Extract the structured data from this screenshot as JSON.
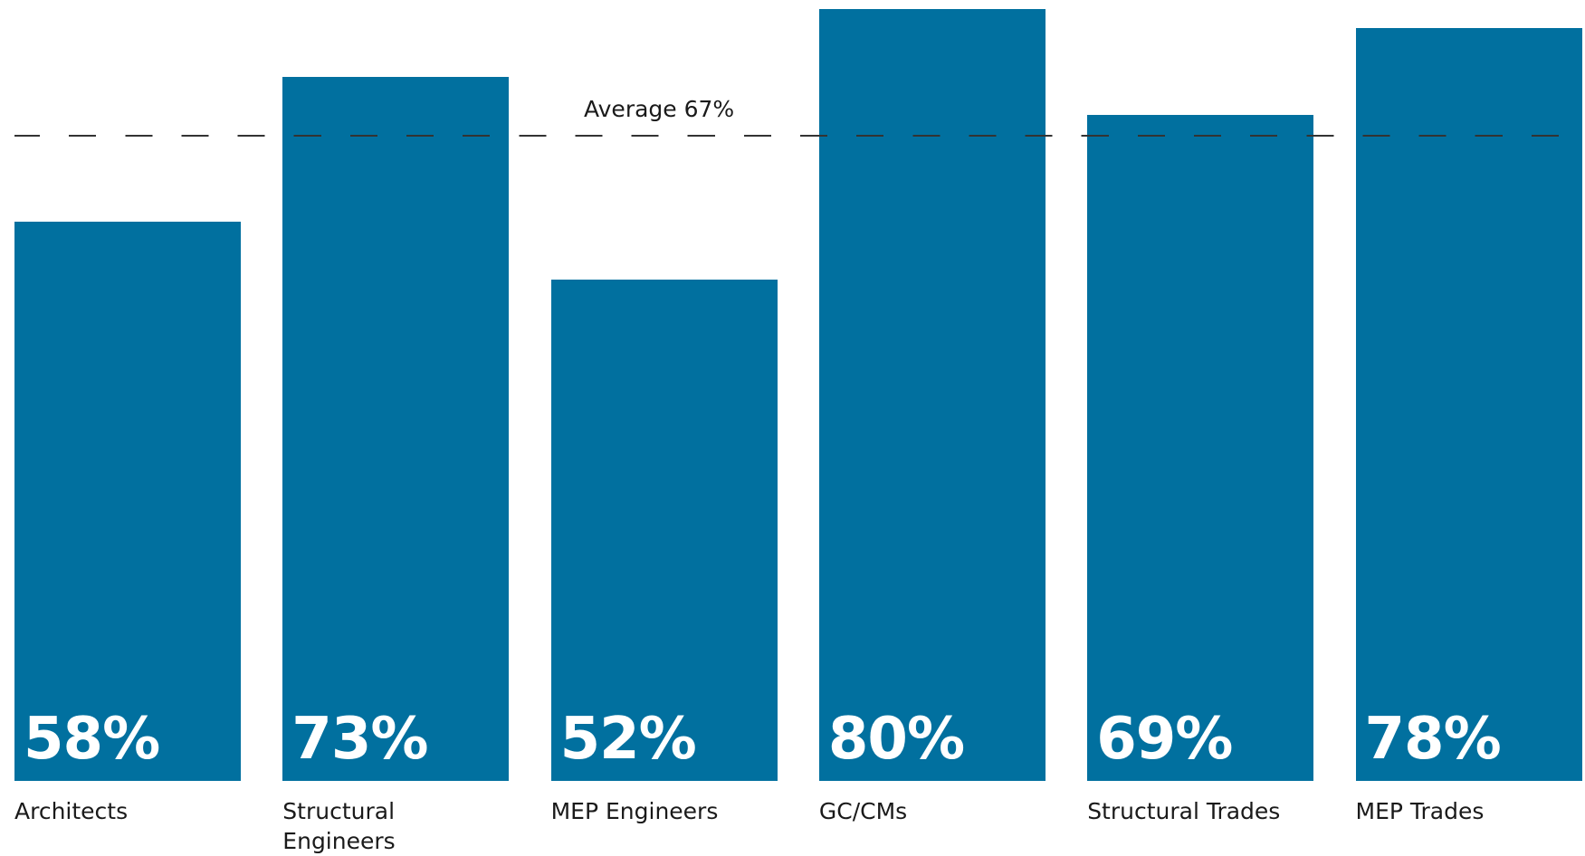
{
  "chart_data": {
    "type": "bar",
    "categories": [
      "Architects",
      "Structural Engineers",
      "MEP Engineers",
      "GC/CMs",
      "Structural Trades",
      "MEP Trades"
    ],
    "values": [
      58,
      73,
      52,
      80,
      69,
      78
    ],
    "value_labels": [
      "58%",
      "73%",
      "52%",
      "80%",
      "69%",
      "78%"
    ],
    "ylim": [
      0,
      80
    ],
    "average": {
      "value": 67,
      "label": "Average 67%"
    },
    "grid": false,
    "legend": "none",
    "colors": {
      "bar": "#01709f",
      "value_text": "#ffffff",
      "average_line": "#333333"
    }
  }
}
